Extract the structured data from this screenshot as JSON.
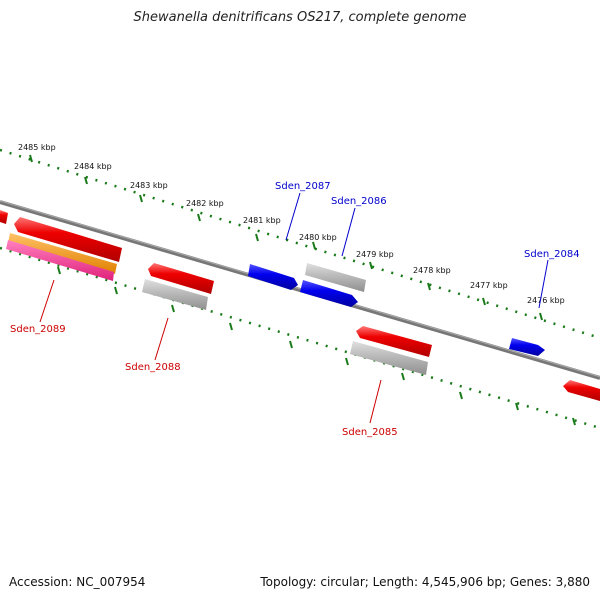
{
  "title": "Shewanella denitrificans OS217, complete genome",
  "accession": "Accession: NC_007954",
  "summary": "Topology: circular; Length: 4,545,906 bp; Genes: 3,880",
  "tick_labels": [
    "2485 kbp",
    "2484 kbp",
    "2483 kbp",
    "2482 kbp",
    "2481 kbp",
    "2480 kbp",
    "2479 kbp",
    "2478 kbp",
    "2477 kbp",
    "2476 kbp"
  ],
  "gene_labels": {
    "sden_2087": "Sden_2087",
    "sden_2086": "Sden_2086",
    "sden_2084": "Sden_2084",
    "sden_2089": "Sden_2089",
    "sden_2088": "Sden_2088",
    "sden_2085": "Sden_2085"
  },
  "colors": {
    "forward_label": "#0000cc",
    "reverse_label": "#cc0000",
    "tick": "#1a7a1a",
    "backbone": "#777777",
    "gene_red": "#e00000",
    "gene_blue": "#0000dd",
    "gene_gray": "#b8b8b8",
    "gene_orange": "#ff9900",
    "gene_pink": "#ff3399"
  }
}
